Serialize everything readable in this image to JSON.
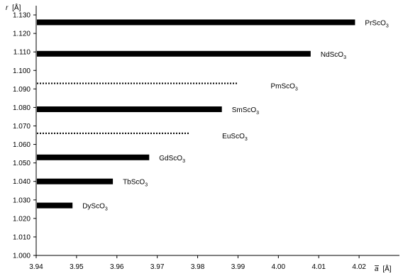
{
  "chart_data": {
    "type": "bar",
    "orientation": "horizontal",
    "xlabel": "a",
    "xlabel_overline": true,
    "xunit": "[Å]",
    "ylabel": "r",
    "yunit": "[Å]",
    "xlim": [
      3.94,
      4.03
    ],
    "ylim": [
      1.0,
      1.135
    ],
    "xticks": [
      "3.94",
      "3.95",
      "3.96",
      "3.97",
      "3.98",
      "3.99",
      "4.00",
      "4.01",
      "4.02"
    ],
    "yticks": [
      "1.000",
      "1.010",
      "1.020",
      "1.030",
      "1.040",
      "1.050",
      "1.060",
      "1.070",
      "1.080",
      "1.090",
      "1.100",
      "1.110",
      "1.120",
      "1.130"
    ],
    "grid": false,
    "bars": [
      {
        "base": "PrSc",
        "sub": "3",
        "formula_prefix": "O",
        "r": 1.126,
        "a": 4.019,
        "style": "solid"
      },
      {
        "base": "NdSc",
        "sub": "3",
        "formula_prefix": "O",
        "r": 1.109,
        "a": 4.008,
        "style": "solid"
      },
      {
        "base": "PmSc",
        "sub": "3",
        "formula_prefix": "O",
        "r": 1.093,
        "a": 3.99,
        "style": "dotted"
      },
      {
        "base": "SmSc",
        "sub": "3",
        "formula_prefix": "O",
        "r": 1.079,
        "a": 3.986,
        "style": "solid"
      },
      {
        "base": "EuSc",
        "sub": "3",
        "formula_prefix": "O",
        "r": 1.066,
        "a": 3.978,
        "style": "dotted"
      },
      {
        "base": "GdSc",
        "sub": "3",
        "formula_prefix": "O",
        "r": 1.053,
        "a": 3.968,
        "style": "solid"
      },
      {
        "base": "TbSc",
        "sub": "3",
        "formula_prefix": "O",
        "r": 1.04,
        "a": 3.959,
        "style": "solid"
      },
      {
        "base": "DySc",
        "sub": "3",
        "formula_prefix": "O",
        "r": 1.027,
        "a": 3.949,
        "style": "solid"
      }
    ]
  }
}
